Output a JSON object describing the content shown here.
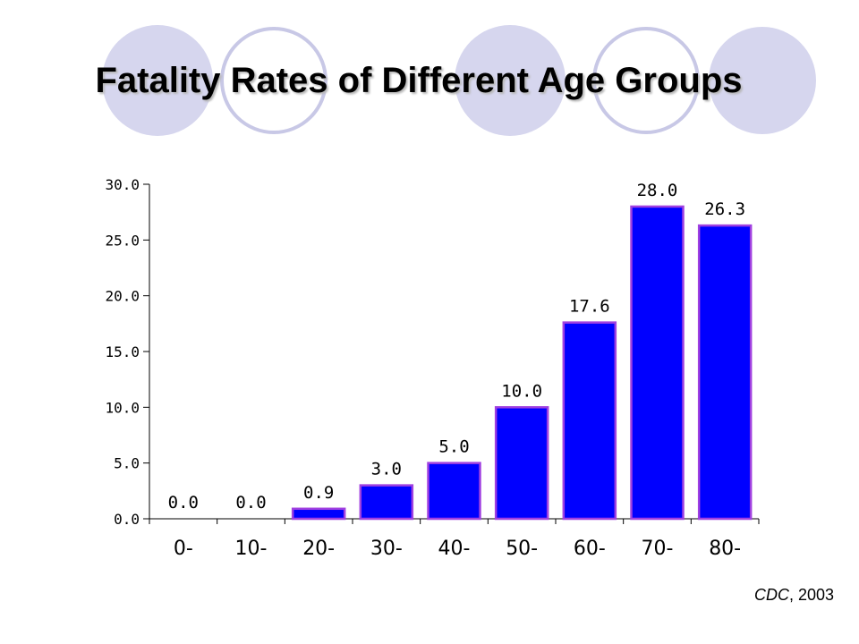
{
  "slide": {
    "title": "Fatality Rates of Different Age Groups",
    "source_org": "CDC",
    "source_year": ", 2003"
  },
  "decoration": {
    "circle_fill": "#d6d6ee",
    "circle_outline": "#c8c8e6"
  },
  "chart_data": {
    "type": "bar",
    "categories": [
      "0-",
      "10-",
      "20-",
      "30-",
      "40-",
      "50-",
      "60-",
      "70-",
      "80-"
    ],
    "values": [
      0.0,
      0.0,
      0.9,
      3.0,
      5.0,
      10.0,
      17.6,
      28.0,
      26.3
    ],
    "data_labels": [
      "0.0",
      "0.0",
      "0.9",
      "3.0",
      "5.0",
      "10.0",
      "17.6",
      "28.0",
      "26.3"
    ],
    "yticks": [
      "0.0",
      "5.0",
      "10.0",
      "15.0",
      "20.0",
      "25.0",
      "30.0"
    ],
    "ylim": [
      0,
      30
    ],
    "title": "",
    "xlabel": "",
    "ylabel": "",
    "grid": false,
    "legend": "none",
    "bar_color": "#0000ff",
    "bar_edge_color": "#a040e0"
  }
}
